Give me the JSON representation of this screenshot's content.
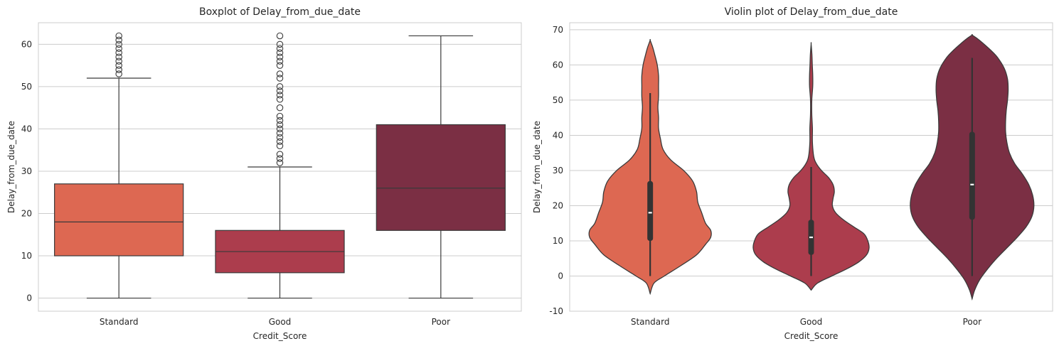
{
  "chart_data": [
    {
      "type": "box",
      "title": "Boxplot of Delay_from_due_date",
      "xlabel": "Credit_Score",
      "ylabel": "Delay_from_due_date",
      "categories": [
        "Standard",
        "Good",
        "Poor"
      ],
      "colors": [
        "#dd6852",
        "#ac3d4d",
        "#7b2f44"
      ],
      "ylim": [
        -3.1,
        65.1
      ],
      "yticks": [
        0,
        10,
        20,
        30,
        40,
        50,
        60
      ],
      "grid": true,
      "boxes": [
        {
          "min": 0,
          "q1": 10,
          "median": 18,
          "q3": 27,
          "max": 52,
          "outliers": [
            53,
            54,
            55,
            56,
            57,
            58,
            59,
            60,
            61,
            62
          ]
        },
        {
          "min": 0,
          "q1": 6,
          "median": 11,
          "q3": 16,
          "max": 31,
          "outliers": [
            32,
            33,
            34,
            36,
            37,
            38,
            39,
            40,
            41,
            42,
            43,
            45,
            47,
            48,
            49,
            50,
            52,
            53,
            55,
            56,
            57,
            58,
            59,
            60,
            62
          ]
        },
        {
          "min": 0,
          "q1": 16,
          "median": 26,
          "q3": 41,
          "max": 62,
          "outliers": []
        }
      ]
    },
    {
      "type": "violin",
      "title": "Violin plot of Delay_from_due_date",
      "xlabel": "Credit_Score",
      "ylabel": "Delay_from_due_date",
      "categories": [
        "Standard",
        "Good",
        "Poor"
      ],
      "colors": [
        "#dd6852",
        "#ac3d4d",
        "#7b2f44"
      ],
      "ylim": [
        -10,
        72
      ],
      "yticks": [
        -10,
        0,
        10,
        20,
        30,
        40,
        50,
        60,
        70
      ],
      "grid": true,
      "violins": [
        {
          "min": 0,
          "q1": 10,
          "median": 18,
          "q3": 27,
          "max": 52,
          "extent": [
            -5,
            67
          ],
          "density": [
            [
              -5,
              0.0
            ],
            [
              -2,
              0.06
            ],
            [
              0,
              0.22
            ],
            [
              3,
              0.48
            ],
            [
              6,
              0.72
            ],
            [
              9,
              0.86
            ],
            [
              11,
              0.94
            ],
            [
              13,
              0.94
            ],
            [
              15,
              0.86
            ],
            [
              18,
              0.8
            ],
            [
              21,
              0.74
            ],
            [
              24,
              0.72
            ],
            [
              27,
              0.66
            ],
            [
              30,
              0.52
            ],
            [
              33,
              0.32
            ],
            [
              36,
              0.2
            ],
            [
              39,
              0.16
            ],
            [
              42,
              0.13
            ],
            [
              45,
              0.13
            ],
            [
              48,
              0.12
            ],
            [
              51,
              0.13
            ],
            [
              54,
              0.13
            ],
            [
              57,
              0.13
            ],
            [
              60,
              0.11
            ],
            [
              63,
              0.07
            ],
            [
              65,
              0.04
            ],
            [
              67,
              0.0
            ]
          ]
        },
        {
          "min": 0,
          "q1": 6,
          "median": 11,
          "q3": 16,
          "max": 31,
          "extent": [
            -4,
            66
          ],
          "density": [
            [
              -4,
              0.0
            ],
            [
              -2,
              0.1
            ],
            [
              0,
              0.32
            ],
            [
              2,
              0.55
            ],
            [
              4,
              0.74
            ],
            [
              6,
              0.86
            ],
            [
              8,
              0.9
            ],
            [
              10,
              0.88
            ],
            [
              12,
              0.82
            ],
            [
              14,
              0.66
            ],
            [
              16,
              0.5
            ],
            [
              18,
              0.38
            ],
            [
              20,
              0.33
            ],
            [
              22,
              0.34
            ],
            [
              24,
              0.36
            ],
            [
              26,
              0.34
            ],
            [
              28,
              0.27
            ],
            [
              30,
              0.16
            ],
            [
              32,
              0.08
            ],
            [
              34,
              0.04
            ],
            [
              38,
              0.02
            ],
            [
              42,
              0.02
            ],
            [
              46,
              0.01
            ],
            [
              50,
              0.01
            ],
            [
              54,
              0.025
            ],
            [
              57,
              0.025
            ],
            [
              60,
              0.018
            ],
            [
              63,
              0.012
            ],
            [
              66,
              0.0
            ]
          ]
        },
        {
          "min": 0,
          "q1": 16,
          "median": 26,
          "q3": 41,
          "max": 62,
          "extent": [
            -6.5,
            68.5
          ],
          "density": [
            [
              -6.5,
              0.0
            ],
            [
              -4,
              0.04
            ],
            [
              -1,
              0.12
            ],
            [
              2,
              0.24
            ],
            [
              5,
              0.38
            ],
            [
              8,
              0.54
            ],
            [
              11,
              0.7
            ],
            [
              14,
              0.84
            ],
            [
              17,
              0.93
            ],
            [
              20,
              0.96
            ],
            [
              23,
              0.94
            ],
            [
              26,
              0.88
            ],
            [
              29,
              0.78
            ],
            [
              32,
              0.66
            ],
            [
              35,
              0.58
            ],
            [
              38,
              0.54
            ],
            [
              41,
              0.52
            ],
            [
              44,
              0.52
            ],
            [
              47,
              0.53
            ],
            [
              50,
              0.55
            ],
            [
              53,
              0.56
            ],
            [
              56,
              0.55
            ],
            [
              59,
              0.5
            ],
            [
              62,
              0.4
            ],
            [
              64,
              0.3
            ],
            [
              66,
              0.18
            ],
            [
              67.5,
              0.08
            ],
            [
              68.5,
              0.0
            ]
          ]
        }
      ]
    }
  ]
}
